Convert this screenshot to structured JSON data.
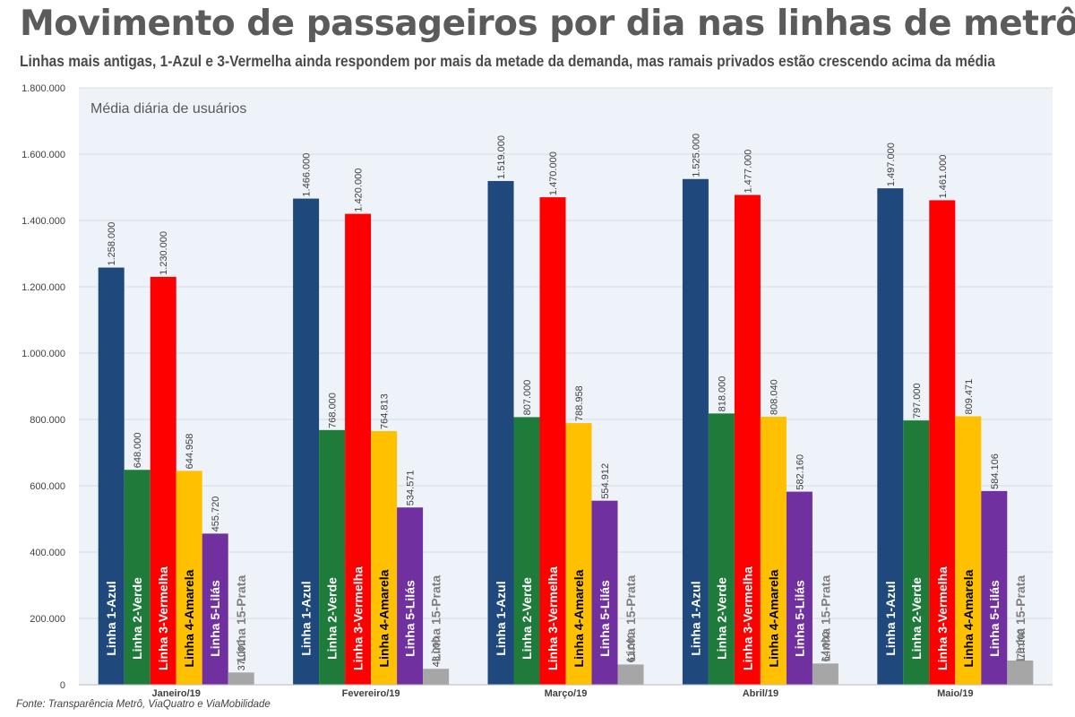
{
  "title": "Movimento de passageiros por dia nas linhas de metrô",
  "subtitle": "Linhas mais antigas, 1-Azul e 3-Vermelha ainda respondem por mais da metade da demanda, mas ramais privados estão crescendo acima da média",
  "source": "Fonte: Transparência Metrô, ViaQuatro e ViaMobilidade",
  "colors": {
    "plot_background": "#eef2f9",
    "grid": "#d8dde6",
    "series": [
      "#1f497d",
      "#1e7b3a",
      "#ff0000",
      "#ffc000",
      "#7030a0",
      "#a6a6a6"
    ],
    "inner_label_light": "#ffffff",
    "inner_label_dark": "#000000",
    "inner_label_gray": "#7f7f7f"
  },
  "chart_data": {
    "type": "bar",
    "title": "Média diária de usuários",
    "categories": [
      "Janeiro/19",
      "Fevereiro/19",
      "Março/19",
      "Abril/19",
      "Maio/19"
    ],
    "series": [
      {
        "name": "Linha 1-Azul",
        "values": [
          1258000,
          1466000,
          1519000,
          1525000,
          1497000
        ],
        "labels": [
          "1.258.000",
          "1.466.000",
          "1.519.000",
          "1.525.000",
          "1.497.000"
        ]
      },
      {
        "name": "Linha 2-Verde",
        "values": [
          648000,
          768000,
          807000,
          818000,
          797000
        ],
        "labels": [
          "648.000",
          "768.000",
          "807.000",
          "818.000",
          "797.000"
        ]
      },
      {
        "name": "Linha 3-Vermelha",
        "values": [
          1230000,
          1420000,
          1470000,
          1477000,
          1461000
        ],
        "labels": [
          "1.230.000",
          "1.420.000",
          "1.470.000",
          "1.477.000",
          "1.461.000"
        ]
      },
      {
        "name": "Linha 4-Amarela",
        "values": [
          644958,
          764813,
          788958,
          808040,
          809471
        ],
        "labels": [
          "644.958",
          "764.813",
          "788.958",
          "808.040",
          "809.471"
        ]
      },
      {
        "name": "Linha 5-Lilás",
        "values": [
          455720,
          534571,
          554912,
          582160,
          584106
        ],
        "labels": [
          "455.720",
          "534.571",
          "554.912",
          "582.160",
          "584.106"
        ]
      },
      {
        "name": "Linha 15-Prata",
        "values": [
          37000,
          48000,
          61000,
          64000,
          73000
        ],
        "labels": [
          "37.000",
          "48.000",
          "61.000",
          "64.000",
          "73.000"
        ]
      }
    ],
    "ylim": [
      0,
      1800000
    ],
    "yticks": [
      0,
      200000,
      400000,
      600000,
      800000,
      1000000,
      1200000,
      1400000,
      1600000,
      1800000
    ],
    "ytick_labels": [
      "0",
      "200.000",
      "400.000",
      "600.000",
      "800.000",
      "1.000.000",
      "1.200.000",
      "1.400.000",
      "1.600.000",
      "1.800.000"
    ],
    "grid": true,
    "legend": "none"
  }
}
